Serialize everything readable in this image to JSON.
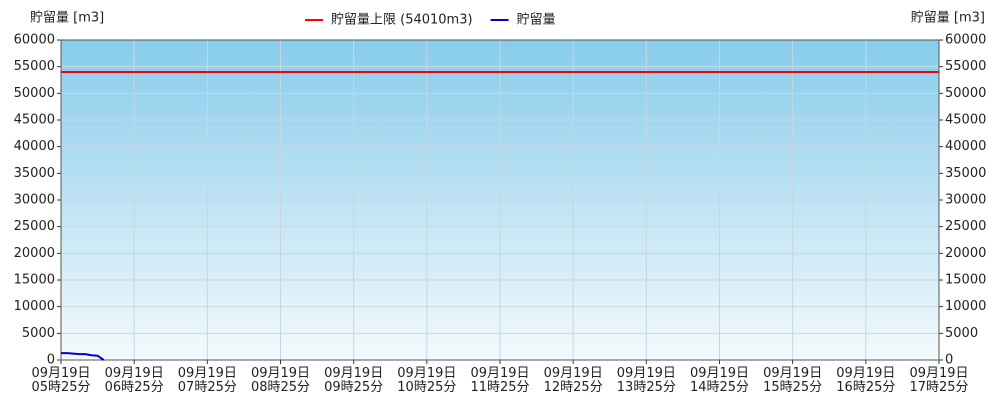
{
  "chart_data": {
    "type": "line",
    "y_label": "貯留量 [m3]",
    "y2_label": "貯留量 [m3]",
    "ylim": [
      0,
      60000
    ],
    "yticks": [
      0,
      5000,
      10000,
      15000,
      20000,
      25000,
      30000,
      35000,
      40000,
      45000,
      50000,
      55000,
      60000
    ],
    "y2lim": [
      0,
      60000
    ],
    "y2ticks": [
      0,
      5000,
      10000,
      15000,
      20000,
      25000,
      30000,
      35000,
      40000,
      45000,
      50000,
      55000,
      60000
    ],
    "xlim": [
      "05:25",
      "17:25"
    ],
    "xticks": [
      {
        "value": "05:25",
        "label": "09月19日\n05時25分"
      },
      {
        "value": "06:25",
        "label": "09月19日\n06時25分"
      },
      {
        "value": "07:25",
        "label": "09月19日\n07時25分"
      },
      {
        "value": "08:25",
        "label": "09月19日\n08時25分"
      },
      {
        "value": "09:25",
        "label": "09月19日\n09時25分"
      },
      {
        "value": "10:25",
        "label": "09月19日\n10時25分"
      },
      {
        "value": "11:25",
        "label": "09月19日\n11時25分"
      },
      {
        "value": "12:25",
        "label": "09月19日\n12時25分"
      },
      {
        "value": "13:25",
        "label": "09月19日\n13時25分"
      },
      {
        "value": "14:25",
        "label": "09月19日\n14時25分"
      },
      {
        "value": "15:25",
        "label": "09月19日\n15時25分"
      },
      {
        "value": "16:25",
        "label": "09月19日\n16時25分"
      },
      {
        "value": "17:25",
        "label": "09月19日\n17時25分"
      }
    ],
    "grid": true,
    "series": [
      {
        "name": "貯留量上限 (54010m3)",
        "color": "#ff0000",
        "x": [
          "05:25",
          "17:25"
        ],
        "values": [
          54010,
          54010
        ]
      },
      {
        "name": "貯留量",
        "color": "#0000cc",
        "x": [
          "05:25",
          "05:30",
          "05:35",
          "05:40",
          "05:45",
          "05:50",
          "05:55",
          "06:00"
        ],
        "values": [
          1300,
          1300,
          1200,
          1100,
          1100,
          900,
          800,
          0
        ]
      }
    ]
  }
}
